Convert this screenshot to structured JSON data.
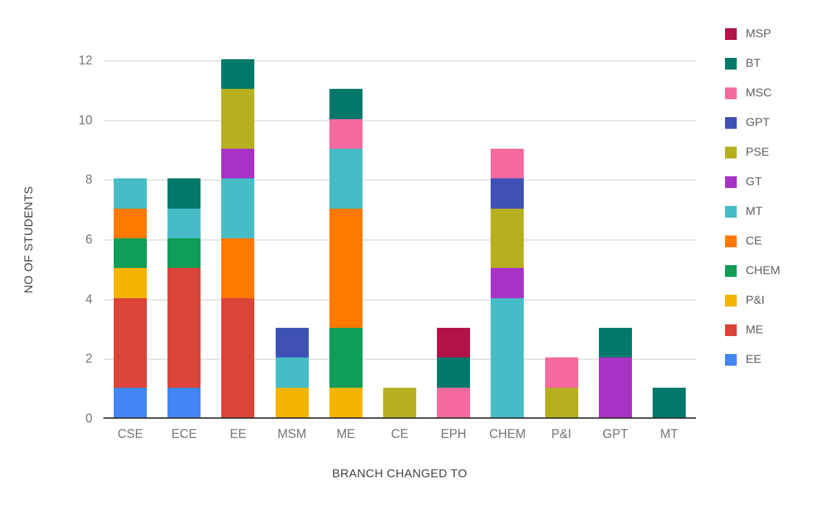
{
  "chart_data": {
    "type": "bar",
    "stacked": true,
    "title": "",
    "xlabel": "BRANCH CHANGED TO",
    "ylabel": "NO OF STUDENTS",
    "ylim": [
      0,
      12
    ],
    "yticks": [
      0,
      2,
      4,
      6,
      8,
      10,
      12
    ],
    "grid": true,
    "categories": [
      "CSE",
      "ECE",
      "EE",
      "MSM",
      "ME",
      "CE",
      "EPH",
      "CHEM",
      "P&I",
      "GPT",
      "MT"
    ],
    "series": [
      {
        "name": "EE",
        "color": "#4285f4",
        "values": [
          1,
          1,
          0,
          0,
          0,
          0,
          0,
          0,
          0,
          0,
          0
        ]
      },
      {
        "name": "ME",
        "color": "#db4437",
        "values": [
          3,
          4,
          4,
          0,
          0,
          0,
          0,
          0,
          0,
          0,
          0
        ]
      },
      {
        "name": "P&I",
        "color": "#f4b400",
        "values": [
          1,
          0,
          0,
          1,
          1,
          0,
          0,
          0,
          0,
          0,
          0
        ]
      },
      {
        "name": "CHEM",
        "color": "#0f9d58",
        "values": [
          1,
          1,
          0,
          0,
          2,
          0,
          0,
          0,
          0,
          0,
          0
        ]
      },
      {
        "name": "CE",
        "color": "#ff7900",
        "values": [
          1,
          0,
          2,
          0,
          4,
          0,
          0,
          0,
          0,
          0,
          0
        ]
      },
      {
        "name": "MT",
        "color": "#46bdc6",
        "values": [
          1,
          1,
          2,
          1,
          2,
          0,
          0,
          4,
          0,
          0,
          0
        ]
      },
      {
        "name": "GT",
        "color": "#a932c6",
        "values": [
          0,
          0,
          1,
          0,
          0,
          0,
          0,
          1,
          0,
          2,
          0
        ]
      },
      {
        "name": "PSE",
        "color": "#b6b01f",
        "values": [
          0,
          0,
          2,
          0,
          0,
          1,
          0,
          2,
          1,
          0,
          0
        ]
      },
      {
        "name": "GPT",
        "color": "#3f51b5",
        "values": [
          0,
          0,
          0,
          1,
          0,
          0,
          0,
          1,
          0,
          0,
          0
        ]
      },
      {
        "name": "MSC",
        "color": "#f4699e",
        "values": [
          0,
          0,
          0,
          0,
          1,
          0,
          1,
          1,
          1,
          0,
          0
        ]
      },
      {
        "name": "BT",
        "color": "#00796b",
        "values": [
          0,
          1,
          1,
          0,
          1,
          0,
          1,
          0,
          0,
          1,
          1
        ]
      },
      {
        "name": "MSP",
        "color": "#b11248",
        "values": [
          0,
          0,
          0,
          0,
          0,
          0,
          1,
          0,
          0,
          0,
          0
        ]
      }
    ],
    "legend": {
      "position": "right",
      "order": [
        "MSP",
        "BT",
        "MSC",
        "GPT",
        "PSE",
        "GT",
        "MT",
        "CE",
        "CHEM",
        "P&I",
        "ME",
        "EE"
      ]
    }
  }
}
